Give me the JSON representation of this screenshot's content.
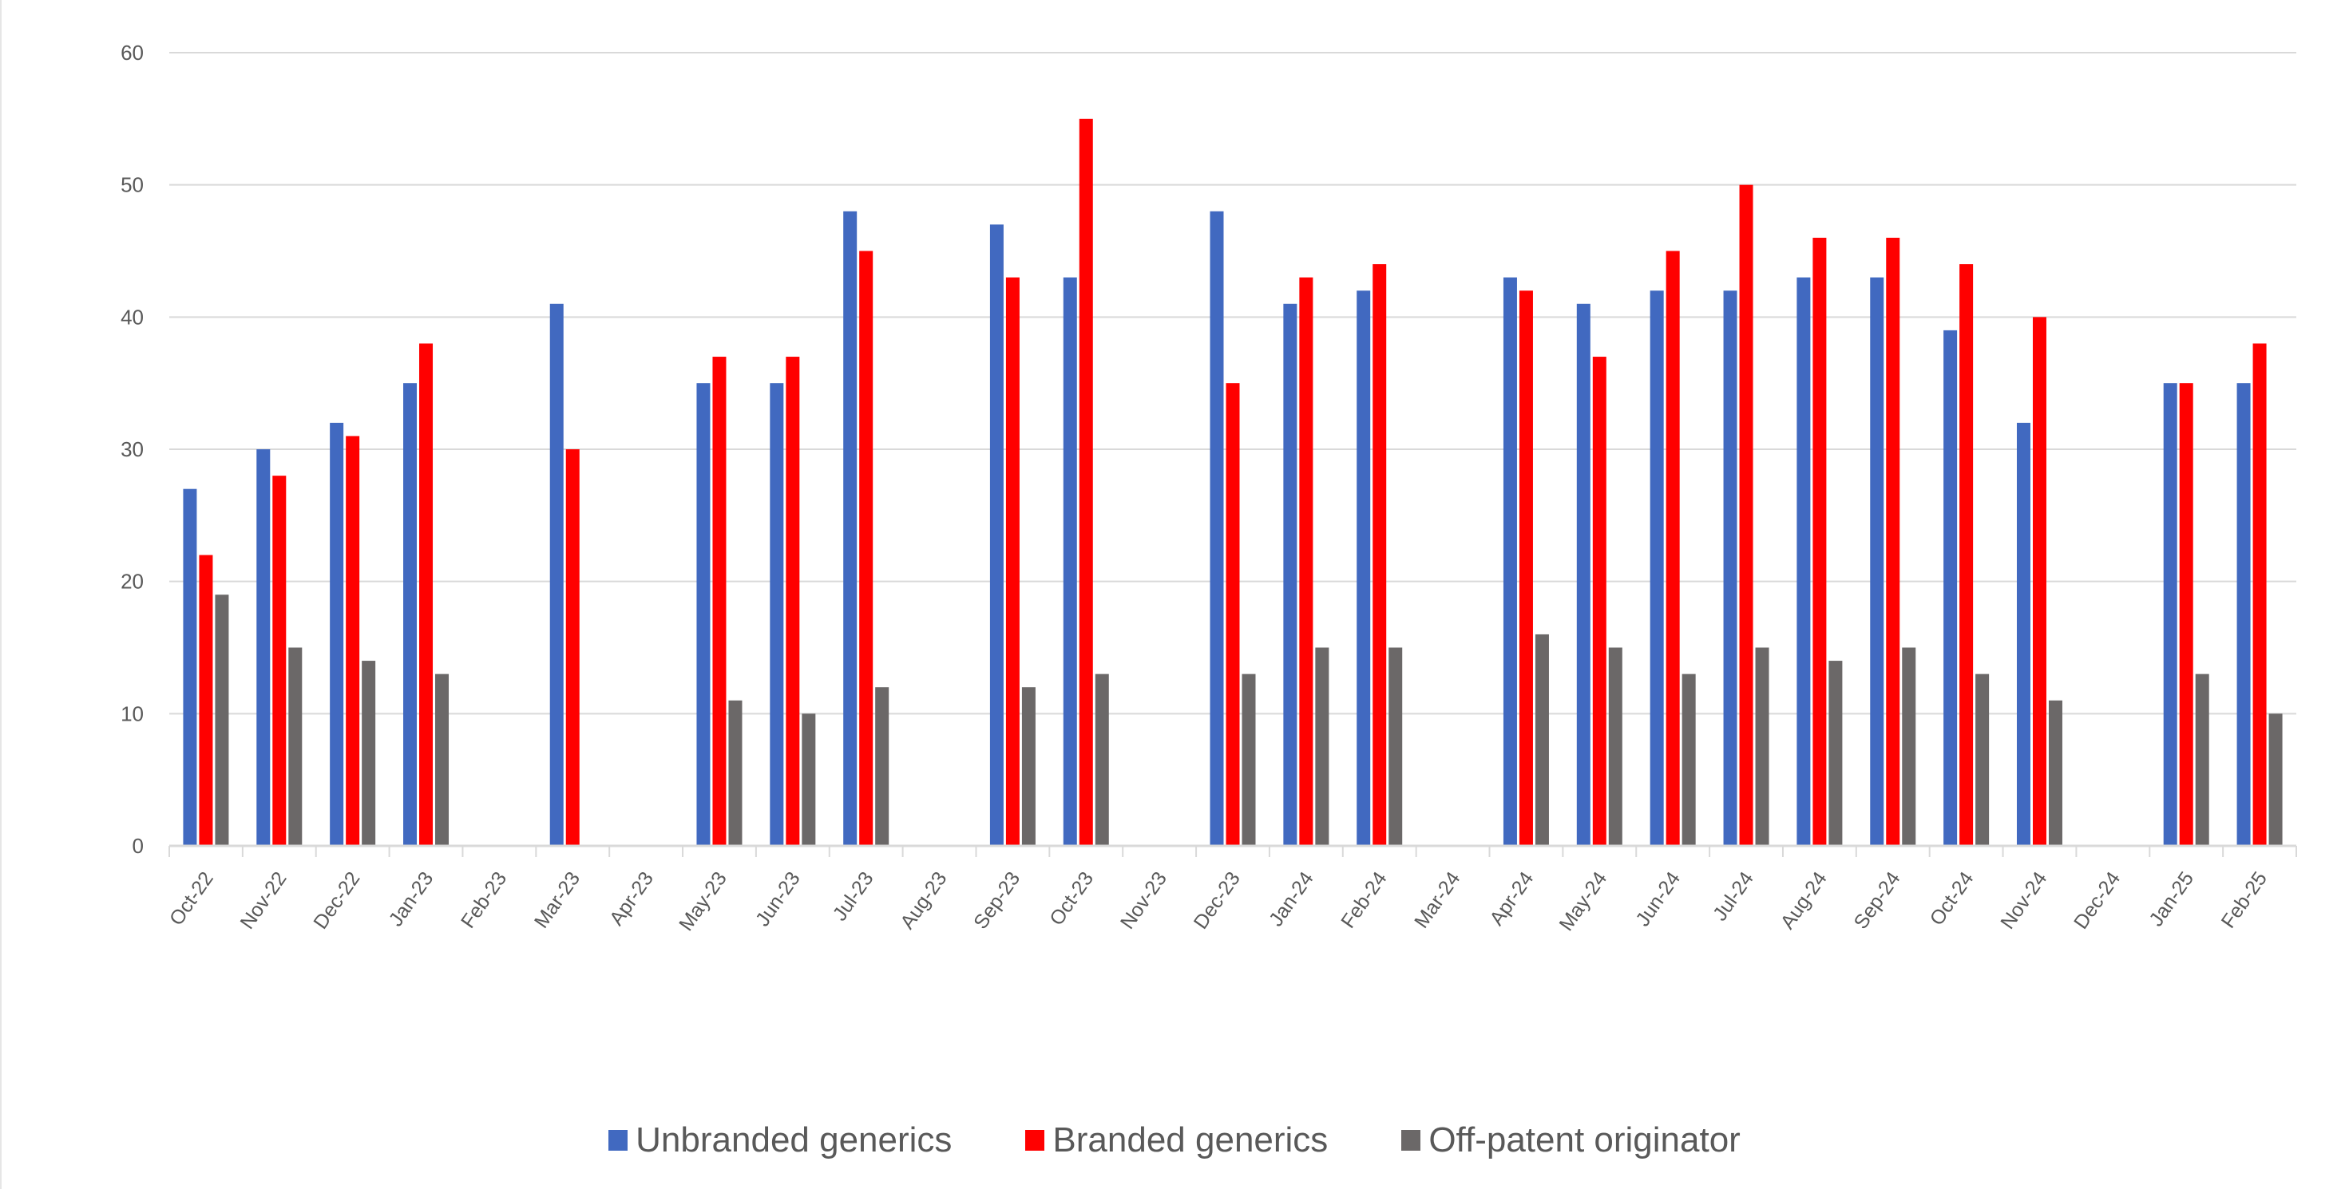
{
  "chart_data": {
    "type": "bar",
    "title": "",
    "xlabel": "",
    "ylabel": "",
    "ylim": [
      0,
      60
    ],
    "yticks": [
      0,
      10,
      20,
      30,
      40,
      50,
      60
    ],
    "grid": true,
    "legend_position": "bottom",
    "categories": [
      "Oct-22",
      "Nov-22",
      "Dec-22",
      "Jan-23",
      "Feb-23",
      "Mar-23",
      "Apr-23",
      "May-23",
      "Jun-23",
      "Jul-23",
      "Aug-23",
      "Sep-23",
      "Oct-23",
      "Nov-23",
      "Dec-23",
      "Jan-24",
      "Feb-24",
      "Mar-24",
      "Apr-24",
      "May-24",
      "Jun-24",
      "Jul-24",
      "Aug-24",
      "Sep-24",
      "Oct-24",
      "Nov-24",
      "Dec-24",
      "Jan-25",
      "Feb-25"
    ],
    "series": [
      {
        "name": "Unbranded generics",
        "color": "#4169C0",
        "values": [
          27,
          30,
          32,
          35,
          null,
          41,
          null,
          35,
          35,
          48,
          null,
          47,
          43,
          null,
          48,
          41,
          42,
          null,
          43,
          41,
          42,
          42,
          43,
          43,
          39,
          32,
          null,
          35,
          35
        ]
      },
      {
        "name": "Branded generics",
        "color": "#FF0000",
        "values": [
          22,
          28,
          31,
          38,
          null,
          30,
          null,
          37,
          37,
          45,
          null,
          43,
          55,
          null,
          35,
          43,
          44,
          null,
          42,
          37,
          45,
          50,
          46,
          46,
          44,
          40,
          null,
          35,
          38
        ]
      },
      {
        "name": "Off-patent originator",
        "color": "#6B6868",
        "values": [
          19,
          15,
          14,
          13,
          null,
          null,
          null,
          11,
          10,
          12,
          null,
          12,
          13,
          null,
          13,
          15,
          15,
          null,
          16,
          15,
          13,
          15,
          14,
          15,
          13,
          11,
          null,
          13,
          10
        ]
      }
    ]
  }
}
